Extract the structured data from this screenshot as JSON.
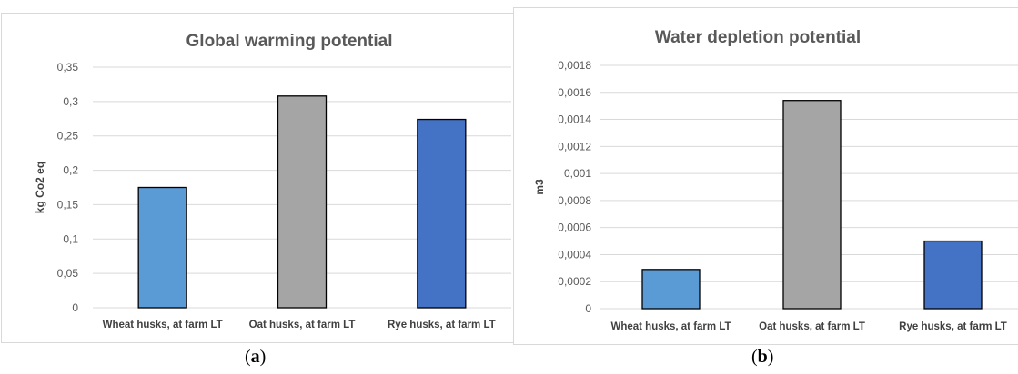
{
  "chart_data": [
    {
      "type": "bar",
      "title": "Global warming potential",
      "ylabel": "kg Co2 eq",
      "xlabel": "",
      "categories": [
        "Wheat husks, at farm LT",
        "Oat husks, at farm LT",
        "Rye husks, at farm LT"
      ],
      "values": [
        0.175,
        0.308,
        0.274
      ],
      "colors": [
        "#5b9bd5",
        "#a5a5a5",
        "#4472c4"
      ],
      "ylim": [
        0,
        0.35
      ],
      "yticks": [
        "0",
        "0,05",
        "0,1",
        "0,15",
        "0,2",
        "0,25",
        "0,3",
        "0,35"
      ],
      "grid": true,
      "legend": "none"
    },
    {
      "type": "bar",
      "title": "Water depletion potential",
      "ylabel": "m3",
      "xlabel": "",
      "categories": [
        "Wheat husks, at farm LT",
        "Oat husks, at farm LT",
        "Rye husks, at farm LT"
      ],
      "values": [
        0.00029,
        0.00154,
        0.0005
      ],
      "colors": [
        "#5b9bd5",
        "#a5a5a5",
        "#4472c4"
      ],
      "ylim": [
        0,
        0.0018
      ],
      "yticks": [
        "0",
        "0,0002",
        "0,0004",
        "0,0006",
        "0,0008",
        "0,001",
        "0,0012",
        "0,0014",
        "0,0016",
        "0,0018"
      ],
      "grid": true,
      "legend": "none"
    }
  ],
  "captions": [
    {
      "label": "a"
    },
    {
      "label": "b"
    }
  ]
}
